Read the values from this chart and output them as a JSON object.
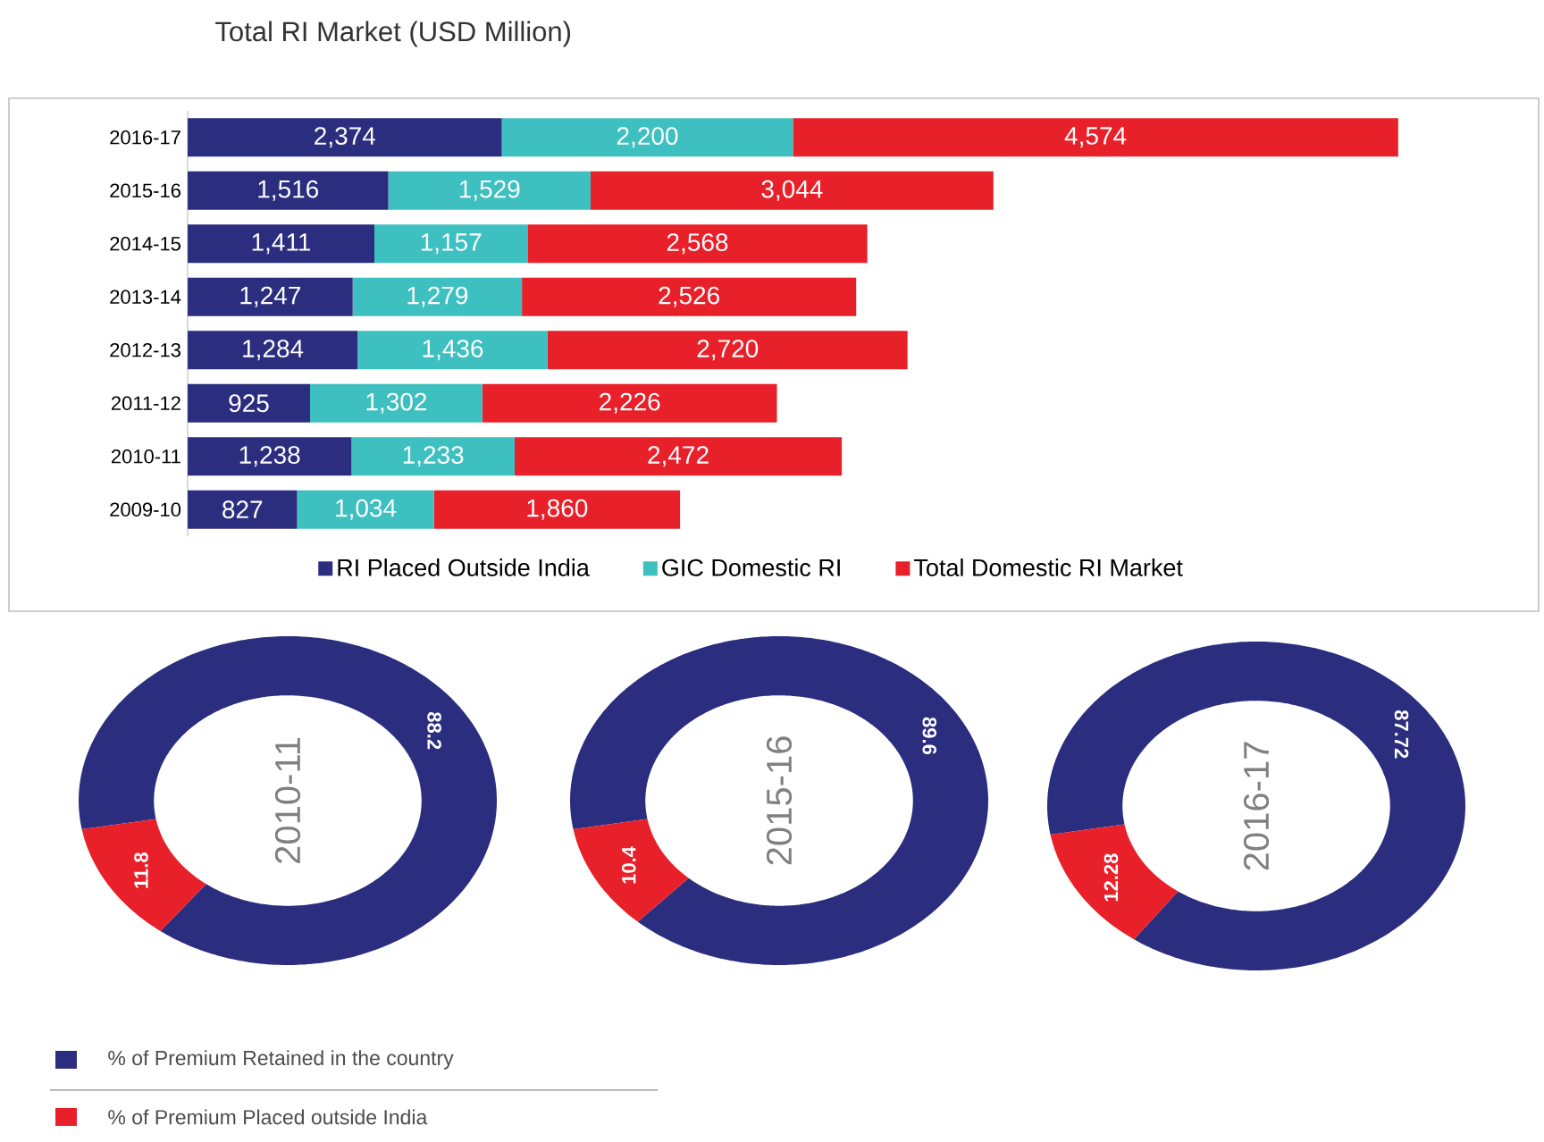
{
  "chart_data": [
    {
      "type": "bar",
      "title": "Total RI Market (USD Million)",
      "orientation": "horizontal",
      "stacked": true,
      "legend": "bottom",
      "categories": [
        "2016-17",
        "2015-16",
        "2014-15",
        "2013-14",
        "2012-13",
        "2011-12",
        "2010-11",
        "2009-10"
      ],
      "series": [
        {
          "name": "RI Placed Outside India",
          "color": "#2b2d7e",
          "values": [
            2374,
            1516,
            1411,
            1247,
            1284,
            925,
            1238,
            827
          ],
          "value_labels": [
            "2,374",
            "1,516",
            "1,411",
            "1,247",
            "1,284",
            "925",
            "1,238",
            "827"
          ]
        },
        {
          "name": "GIC Domestic RI",
          "color": "#3ebfc0",
          "values": [
            2200,
            1529,
            1157,
            1279,
            1436,
            1302,
            1233,
            1034
          ],
          "value_labels": [
            "2,200",
            "1,529",
            "1,157",
            "1,279",
            "1,436",
            "1,302",
            "1,233",
            "1,034"
          ]
        },
        {
          "name": "Total Domestic RI Market",
          "color": "#e8202a",
          "values": [
            4574,
            3044,
            2568,
            2526,
            2720,
            2226,
            2472,
            1860
          ],
          "value_labels": [
            "4,574",
            "3,044",
            "2,568",
            "2,526",
            "2,720",
            "2,226",
            "2,472",
            "1,860"
          ]
        }
      ]
    },
    {
      "type": "donut",
      "title": "2010-11",
      "data_labels": true,
      "legend": "bottom",
      "categories": [
        "% of Premium Retained in the country",
        "% of Premium Placed outside India"
      ],
      "values": [
        88.2,
        11.8
      ],
      "colors": [
        "#2b2d7e",
        "#e8202a"
      ]
    },
    {
      "type": "donut",
      "title": "2015-16",
      "data_labels": true,
      "categories": [
        null,
        null
      ],
      "values": [
        89.6,
        10.4
      ],
      "colors": [
        "#2b2d7e",
        "#e8202a"
      ]
    },
    {
      "type": "donut",
      "title": "2016-17",
      "data_labels": true,
      "categories": [
        null,
        null
      ],
      "values": [
        87.72,
        12.28
      ],
      "colors": [
        "#2b2d7e",
        "#e8202a"
      ]
    }
  ]
}
